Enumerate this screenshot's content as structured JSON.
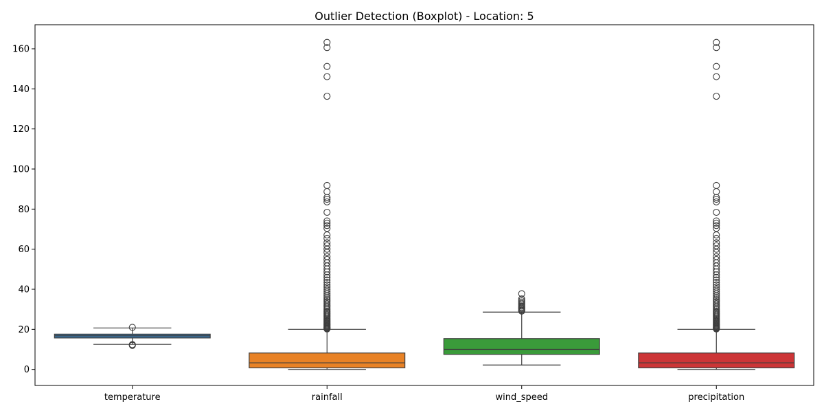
{
  "chart_data": {
    "type": "box",
    "title": "Outlier Detection (Boxplot) - Location: 5",
    "xlabel": "",
    "ylabel": "",
    "ylim": [
      -8,
      172
    ],
    "yticks": [
      0,
      20,
      40,
      60,
      80,
      100,
      120,
      140,
      160
    ],
    "grid": false,
    "legend": "none",
    "categories": [
      "temperature",
      "rainfall",
      "wind_speed",
      "precipitation"
    ],
    "boxes": [
      {
        "name": "temperature",
        "color": "#3a6f9b",
        "whisker_low": 12.5,
        "q1": 15.7,
        "median": 16.8,
        "q3": 17.6,
        "whisker_high": 20.7,
        "outliers": [
          21.0,
          12.0,
          12.2,
          12.4
        ]
      },
      {
        "name": "rainfall",
        "color": "#e88226",
        "whisker_low": 0,
        "q1": 0.8,
        "median": 3.3,
        "q3": 8.2,
        "whisker_high": 20.0,
        "outliers": [
          163.2,
          160.6,
          151.2,
          146.1,
          136.3,
          91.8,
          88.7,
          85.8,
          84.9,
          83.6,
          78.4,
          74.1,
          73.0,
          71.8,
          70.4,
          67.1,
          65.4,
          63.2,
          61.7,
          60.0,
          58.4,
          56.3,
          54.8,
          53.2,
          51.6,
          50.1,
          48.7,
          47.2,
          45.9,
          44.6,
          43.4,
          42.2,
          41.1,
          40.0,
          39.0,
          38.0,
          37.0,
          36.1,
          35.2,
          34.4,
          33.6,
          32.8,
          32.0,
          31.3,
          30.6,
          29.9,
          29.2,
          28.6,
          28.0,
          27.4,
          26.8,
          26.2,
          25.6,
          25.1,
          24.6,
          24.1,
          23.6,
          23.1,
          22.7,
          22.3,
          21.9,
          21.5,
          21.1,
          20.8,
          20.5,
          20.2
        ]
      },
      {
        "name": "wind_speed",
        "color": "#3a9b3a",
        "whisker_low": 2.2,
        "q1": 7.5,
        "median": 10.0,
        "q3": 15.4,
        "whisker_high": 28.6,
        "outliers": [
          37.8,
          35.2,
          34.3,
          33.6,
          32.9,
          32.2,
          31.6,
          31.0,
          30.5,
          30.0,
          29.5,
          29.1
        ]
      },
      {
        "name": "precipitation",
        "color": "#cc3537",
        "whisker_low": 0,
        "q1": 0.8,
        "median": 3.3,
        "q3": 8.2,
        "whisker_high": 20.0,
        "outliers": [
          163.2,
          160.6,
          151.2,
          146.1,
          136.3,
          91.8,
          88.7,
          85.8,
          84.9,
          83.6,
          78.4,
          74.1,
          73.0,
          71.8,
          70.4,
          67.1,
          65.4,
          63.2,
          61.7,
          60.0,
          58.4,
          56.3,
          54.8,
          53.2,
          51.6,
          50.1,
          48.7,
          47.2,
          45.9,
          44.6,
          43.4,
          42.2,
          41.1,
          40.0,
          39.0,
          38.0,
          37.0,
          36.1,
          35.2,
          34.4,
          33.6,
          32.8,
          32.0,
          31.3,
          30.6,
          29.9,
          29.2,
          28.6,
          28.0,
          27.4,
          26.8,
          26.2,
          25.6,
          25.1,
          24.6,
          24.1,
          23.6,
          23.1,
          22.7,
          22.3,
          21.9,
          21.5,
          21.1,
          20.8,
          20.5,
          20.2
        ]
      }
    ]
  }
}
